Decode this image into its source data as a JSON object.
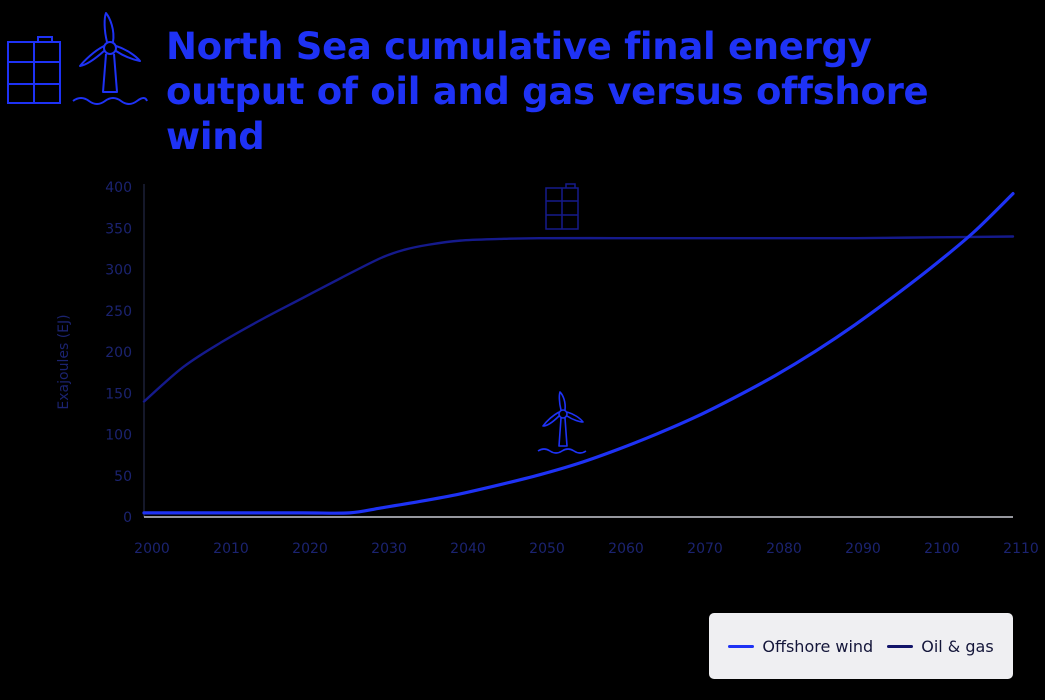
{
  "title": {
    "line1": "North Sea cumulative final energy",
    "line2": "output of oil and gas versus offshore wind"
  },
  "icons": {
    "header": [
      "oil-barrel-icon",
      "wind-turbine-icon"
    ],
    "oil_gas_marker": "oil-barrel-icon",
    "offshore_wind_marker": "wind-turbine-icon"
  },
  "colors": {
    "title": "#1e32f5",
    "offshore_wind": "#1e32f5",
    "oil_gas": "#151a8c",
    "axis_text": "#1b2370",
    "legend_bg": "#efeff2"
  },
  "legend": {
    "items": [
      {
        "label": "Offshore wind",
        "color": "#1e32f5"
      },
      {
        "label": "Oil & gas",
        "color": "#12146a"
      }
    ],
    "placement": "bottom-right"
  },
  "chart_data": {
    "type": "line",
    "title": "North Sea cumulative final energy output of oil and gas versus offshore wind",
    "xlabel": "",
    "ylabel": "Exajoules (EJ)",
    "xlim": [
      2000,
      2110
    ],
    "ylim": [
      0,
      400
    ],
    "xticks": [
      2000,
      2010,
      2020,
      2030,
      2040,
      2050,
      2060,
      2070,
      2080,
      2090,
      2100,
      2110
    ],
    "yticks": [
      0,
      50,
      100,
      150,
      200,
      250,
      300,
      350,
      400
    ],
    "grid": false,
    "series": [
      {
        "name": "Offshore wind",
        "x": [
          2000,
          2010,
          2020,
          2026,
          2030,
          2035,
          2040,
          2045,
          2050,
          2055,
          2060,
          2065,
          2070,
          2075,
          2080,
          2085,
          2090,
          2095,
          2100,
          2105,
          2110
        ],
        "y": [
          5,
          5,
          5,
          5,
          11,
          19,
          28,
          39,
          51,
          65,
          82,
          101,
          122,
          146,
          172,
          201,
          233,
          268,
          305,
          345,
          392
        ]
      },
      {
        "name": "Oil & gas",
        "x": [
          2000,
          2005,
          2010,
          2015,
          2020,
          2025,
          2030,
          2033,
          2036,
          2040,
          2045,
          2050,
          2060,
          2070,
          2080,
          2090,
          2100,
          2110
        ],
        "y": [
          140,
          182,
          213,
          240,
          265,
          290,
          314,
          324,
          330,
          335,
          337,
          338,
          338,
          338,
          338,
          338,
          339,
          340
        ]
      }
    ]
  }
}
